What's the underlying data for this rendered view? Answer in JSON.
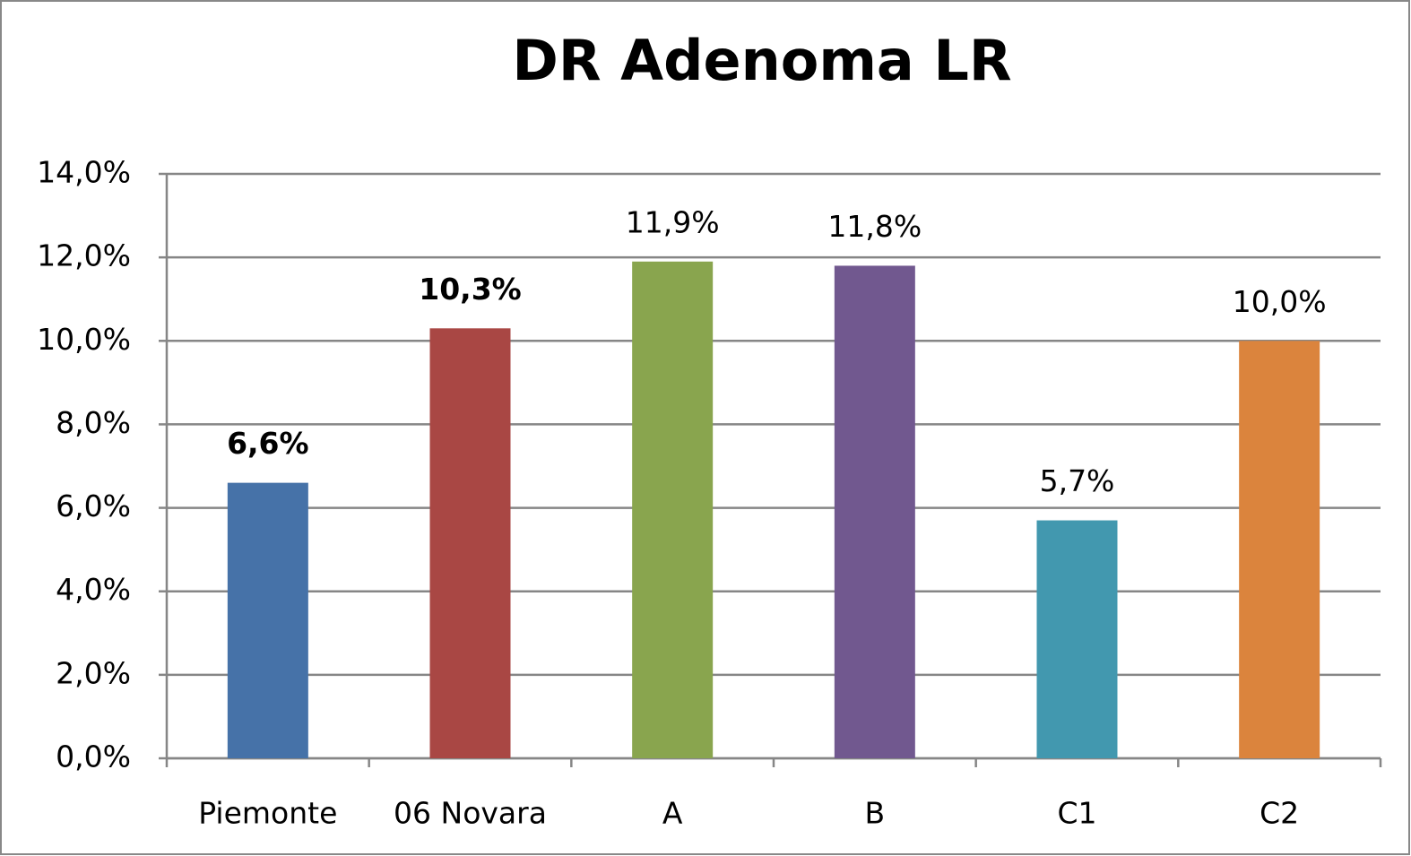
{
  "chart_data": {
    "type": "bar",
    "title": "DR Adenoma LR",
    "categories": [
      "Piemonte",
      "06 Novara",
      "A",
      "B",
      "C1",
      "C2"
    ],
    "values": [
      6.6,
      10.3,
      11.9,
      11.8,
      5.7,
      10.0
    ],
    "value_labels": [
      "6,6%",
      "10,3%",
      "11,9%",
      "11,8%",
      "5,7%",
      "10,0%"
    ],
    "value_labels_bold": [
      true,
      true,
      false,
      false,
      false,
      false
    ],
    "colors": [
      "#4672a8",
      "#a94744",
      "#89a54e",
      "#71588f",
      "#4298af",
      "#db843d"
    ],
    "ylim": [
      0,
      14
    ],
    "yticks": [
      {
        "value": 0,
        "label": "0,0%"
      },
      {
        "value": 2,
        "label": "2,0%"
      },
      {
        "value": 4,
        "label": "4,0%"
      },
      {
        "value": 6,
        "label": "6,0%"
      },
      {
        "value": 8,
        "label": "8,0%"
      },
      {
        "value": 10,
        "label": "10,0%"
      },
      {
        "value": 12,
        "label": "12,0%"
      },
      {
        "value": 14,
        "label": "14,0%"
      }
    ],
    "grid": true
  }
}
